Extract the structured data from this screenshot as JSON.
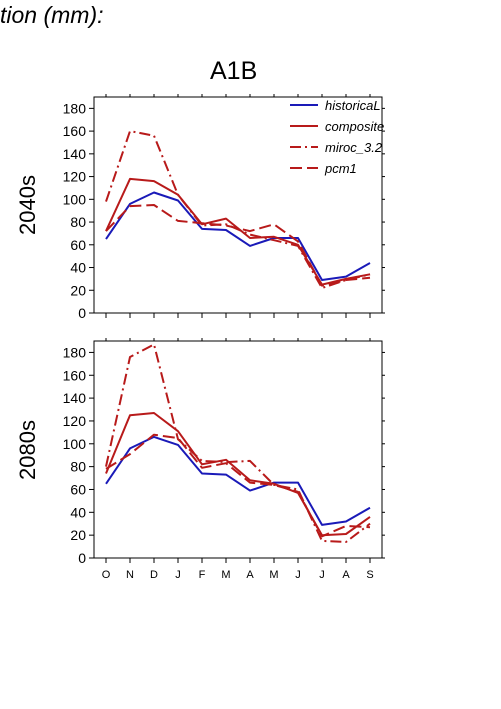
{
  "heading": "tion (mm):",
  "chart_data": [
    {
      "type": "line",
      "title": "A1B",
      "ylabel": "2040s",
      "categories": [
        "O",
        "N",
        "D",
        "J",
        "F",
        "M",
        "A",
        "M",
        "J",
        "J",
        "A",
        "S"
      ],
      "ylim": [
        0,
        190
      ],
      "yticks": [
        0,
        20,
        40,
        60,
        80,
        100,
        120,
        140,
        160,
        180
      ],
      "legend_position": "top-right",
      "series": [
        {
          "name": "historicaL",
          "color": "#1a1ab8",
          "dash": "solid",
          "values": [
            65,
            96,
            106,
            99,
            74,
            73,
            59,
            66,
            66,
            29,
            32,
            44
          ]
        },
        {
          "name": "composite",
          "color": "#b81a1a",
          "dash": "solid",
          "values": [
            72,
            118,
            116,
            104,
            78,
            83,
            66,
            67,
            60,
            25,
            30,
            34
          ]
        },
        {
          "name": "miroc_3.2",
          "color": "#b81a1a",
          "dash": "dashdot",
          "values": [
            98,
            160,
            156,
            104,
            77,
            78,
            69,
            64,
            59,
            22,
            29,
            34
          ]
        },
        {
          "name": "pcm1",
          "color": "#b81a1a",
          "dash": "dash",
          "values": [
            72,
            94,
            95,
            81,
            79,
            77,
            72,
            78,
            63,
            24,
            29,
            31
          ]
        }
      ]
    },
    {
      "type": "line",
      "title": "",
      "ylabel": "2080s",
      "categories": [
        "O",
        "N",
        "D",
        "J",
        "F",
        "M",
        "A",
        "M",
        "J",
        "J",
        "A",
        "S"
      ],
      "ylim": [
        0,
        190
      ],
      "yticks": [
        0,
        20,
        40,
        60,
        80,
        100,
        120,
        140,
        160,
        180
      ],
      "series": [
        {
          "name": "historicaL",
          "color": "#1a1ab8",
          "dash": "solid",
          "values": [
            65,
            96,
            106,
            99,
            74,
            73,
            59,
            66,
            66,
            29,
            32,
            44
          ]
        },
        {
          "name": "composite",
          "color": "#b81a1a",
          "dash": "solid",
          "values": [
            74,
            125,
            127,
            111,
            82,
            86,
            68,
            65,
            57,
            20,
            21,
            36
          ]
        },
        {
          "name": "miroc_3.2",
          "color": "#b81a1a",
          "dash": "dashdot",
          "values": [
            80,
            176,
            187,
            104,
            85,
            84,
            85,
            64,
            60,
            15,
            14,
            30
          ]
        },
        {
          "name": "pcm1",
          "color": "#b81a1a",
          "dash": "dash",
          "values": [
            78,
            91,
            108,
            105,
            79,
            83,
            66,
            64,
            58,
            19,
            28,
            27
          ]
        }
      ]
    }
  ]
}
